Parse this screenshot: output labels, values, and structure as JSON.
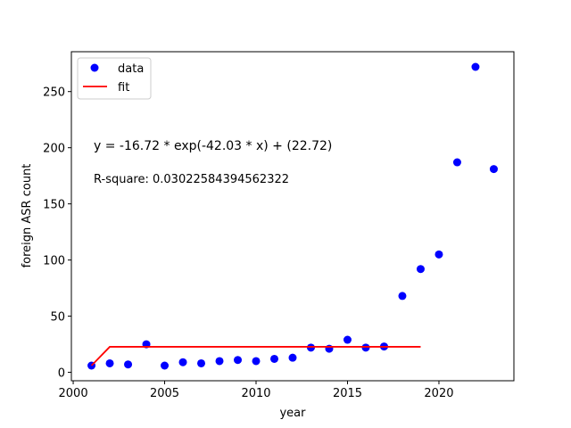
{
  "chart_data": {
    "type": "scatter",
    "xlabel": "year",
    "ylabel": "foreign ASR count",
    "xlim": [
      1999.9,
      2024.1
    ],
    "ylim": [
      -7.5,
      285.5
    ],
    "xticks": [
      2000,
      2005,
      2010,
      2015,
      2020
    ],
    "yticks": [
      0,
      50,
      100,
      150,
      200,
      250
    ],
    "legend_position": "top-left",
    "legend": [
      {
        "label": "data",
        "marker": "circle",
        "color": "#0000ff"
      },
      {
        "label": "fit",
        "marker": "line",
        "color": "#ff0000"
      }
    ],
    "annotations": {
      "equation": "y = -16.72 * exp(-42.03 * x) + (22.72)",
      "rsquare": "R-square: 0.03022584394562322"
    },
    "series": [
      {
        "name": "data",
        "kind": "scatter",
        "color": "#0000ff",
        "x": [
          2001,
          2002,
          2003,
          2004,
          2005,
          2006,
          2007,
          2008,
          2009,
          2010,
          2011,
          2012,
          2013,
          2014,
          2015,
          2016,
          2017,
          2018,
          2019,
          2020,
          2021,
          2022,
          2023
        ],
        "y": [
          6,
          8,
          7,
          25,
          6,
          9,
          8,
          10,
          11,
          10,
          12,
          13,
          22,
          21,
          29,
          22,
          23,
          68,
          92,
          105,
          187,
          272,
          181
        ]
      },
      {
        "name": "fit",
        "kind": "line",
        "color": "#ff0000",
        "x": [
          2001,
          2002,
          2003,
          2005,
          2010,
          2015,
          2019
        ],
        "y": [
          6.0,
          22.72,
          22.72,
          22.72,
          22.72,
          22.72,
          22.72
        ]
      }
    ]
  }
}
